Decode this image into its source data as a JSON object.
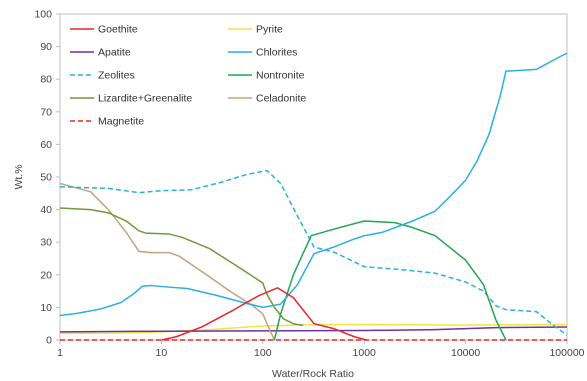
{
  "chart_data": {
    "type": "line",
    "xlabel": "Water/Rock Ratio",
    "ylabel": "Wt.%",
    "xscale": "log",
    "xlim": [
      1,
      100000
    ],
    "ylim": [
      0,
      100
    ],
    "x_ticks": [
      1,
      10,
      100,
      1000,
      10000,
      100000
    ],
    "x_tick_labels": [
      "1",
      "10",
      "100",
      "1000",
      "10000",
      "100000"
    ],
    "y_ticks": [
      0,
      10,
      20,
      30,
      40,
      50,
      60,
      70,
      80,
      90,
      100
    ],
    "y_tick_labels": [
      "0",
      "10",
      "20",
      "30",
      "40",
      "50",
      "60",
      "70",
      "80",
      "90",
      "100"
    ],
    "grid": false,
    "legend_position": "top-left inside",
    "series": [
      {
        "name": "Goethite",
        "color": "#e8262a",
        "dash": "solid",
        "points": [
          [
            10,
            0
          ],
          [
            14,
            1
          ],
          [
            25,
            4
          ],
          [
            50,
            9
          ],
          [
            90,
            13.5
          ],
          [
            140,
            16
          ],
          [
            200,
            13
          ],
          [
            320,
            5
          ],
          [
            500,
            3.5
          ],
          [
            800,
            1
          ],
          [
            1050,
            0
          ]
        ]
      },
      {
        "name": "Pyrite",
        "color": "#f0e442",
        "dash": "solid",
        "points": [
          [
            1,
            2
          ],
          [
            5,
            2.2
          ],
          [
            10,
            2.5
          ],
          [
            30,
            3.2
          ],
          [
            100,
            4.3
          ],
          [
            300,
            4.7
          ],
          [
            1000,
            4.7
          ],
          [
            10000,
            4.6
          ],
          [
            100000,
            4.7
          ]
        ]
      },
      {
        "name": "Apatite",
        "color": "#7030a0",
        "dash": "solid",
        "points": [
          [
            1,
            2.5
          ],
          [
            10,
            2.7
          ],
          [
            100,
            2.8
          ],
          [
            1000,
            2.9
          ],
          [
            5000,
            3.2
          ],
          [
            20000,
            3.8
          ],
          [
            100000,
            4
          ]
        ]
      },
      {
        "name": "Chlorites",
        "color": "#2ab0e0",
        "dash": "solid",
        "points": [
          [
            1,
            7.5
          ],
          [
            1.5,
            8.2
          ],
          [
            2.5,
            9.5
          ],
          [
            4,
            11.5
          ],
          [
            5.5,
            14.5
          ],
          [
            6.5,
            16.5
          ],
          [
            8,
            16.7
          ],
          [
            12,
            16.2
          ],
          [
            18,
            15.8
          ],
          [
            35,
            13.7
          ],
          [
            70,
            11.2
          ],
          [
            100,
            10
          ],
          [
            150,
            11
          ],
          [
            220,
            17
          ],
          [
            320,
            26.5
          ],
          [
            500,
            28.5
          ],
          [
            800,
            31
          ],
          [
            1000,
            32
          ],
          [
            1500,
            33
          ],
          [
            3000,
            36.5
          ],
          [
            5000,
            39.5
          ],
          [
            7000,
            44
          ],
          [
            10000,
            49
          ],
          [
            13000,
            55
          ],
          [
            17000,
            63
          ],
          [
            22000,
            75
          ],
          [
            25000,
            82.5
          ],
          [
            30000,
            82.6
          ],
          [
            50000,
            83
          ],
          [
            70000,
            85.5
          ],
          [
            100000,
            88
          ]
        ]
      },
      {
        "name": "Zeolites",
        "color": "#2ab0e0",
        "dash": "dashed",
        "points": [
          [
            1,
            47
          ],
          [
            3,
            46.5
          ],
          [
            6,
            45.2
          ],
          [
            10,
            45.8
          ],
          [
            20,
            46.1
          ],
          [
            40,
            48.5
          ],
          [
            70,
            50.8
          ],
          [
            110,
            52
          ],
          [
            150,
            48
          ],
          [
            220,
            38
          ],
          [
            320,
            28.5
          ],
          [
            500,
            27
          ],
          [
            1000,
            22.5
          ],
          [
            2500,
            21.5
          ],
          [
            5000,
            20.5
          ],
          [
            10000,
            17.8
          ],
          [
            15000,
            15
          ],
          [
            20000,
            10.5
          ],
          [
            25000,
            9.3
          ],
          [
            50000,
            8.7
          ],
          [
            70000,
            5
          ],
          [
            100000,
            1.5
          ]
        ]
      },
      {
        "name": "Nontronite",
        "color": "#22a654",
        "dash": "solid",
        "points": [
          [
            130,
            0
          ],
          [
            150,
            8
          ],
          [
            200,
            20
          ],
          [
            300,
            32
          ],
          [
            500,
            34
          ],
          [
            1000,
            36.5
          ],
          [
            2000,
            36
          ],
          [
            3000,
            34.5
          ],
          [
            5000,
            32
          ],
          [
            10000,
            24.5
          ],
          [
            15000,
            17
          ],
          [
            20000,
            6
          ],
          [
            25000,
            0
          ]
        ]
      },
      {
        "name": "Lizardite+Greenalite",
        "color": "#6f9a3c",
        "dash": "solid",
        "points": [
          [
            1,
            40.5
          ],
          [
            2,
            40
          ],
          [
            3,
            39
          ],
          [
            4.5,
            36.5
          ],
          [
            6,
            33.5
          ],
          [
            7,
            32.8
          ],
          [
            12,
            32.5
          ],
          [
            16,
            31.5
          ],
          [
            30,
            28
          ],
          [
            60,
            22
          ],
          [
            100,
            17.5
          ],
          [
            110,
            14
          ],
          [
            130,
            10
          ],
          [
            160,
            6.5
          ],
          [
            200,
            5
          ],
          [
            250,
            4.5
          ]
        ]
      },
      {
        "name": "Celadonite",
        "color": "#c8a07a",
        "dash": "solid",
        "points": [
          [
            1,
            48
          ],
          [
            2,
            45.5
          ],
          [
            3,
            40
          ],
          [
            4.5,
            33
          ],
          [
            6,
            27.2
          ],
          [
            8,
            26.8
          ],
          [
            12,
            26.8
          ],
          [
            15,
            25.7
          ],
          [
            25,
            21
          ],
          [
            50,
            14.5
          ],
          [
            80,
            10.5
          ],
          [
            100,
            8
          ],
          [
            110,
            5
          ],
          [
            130,
            0
          ]
        ]
      },
      {
        "name": "Magnetite",
        "color": "#e8262a",
        "dash": "dashed",
        "points": [
          [
            1,
            0
          ],
          [
            10,
            0
          ],
          [
            100,
            0
          ],
          [
            1000,
            0
          ],
          [
            10000,
            0
          ],
          [
            100000,
            0
          ]
        ]
      }
    ]
  }
}
